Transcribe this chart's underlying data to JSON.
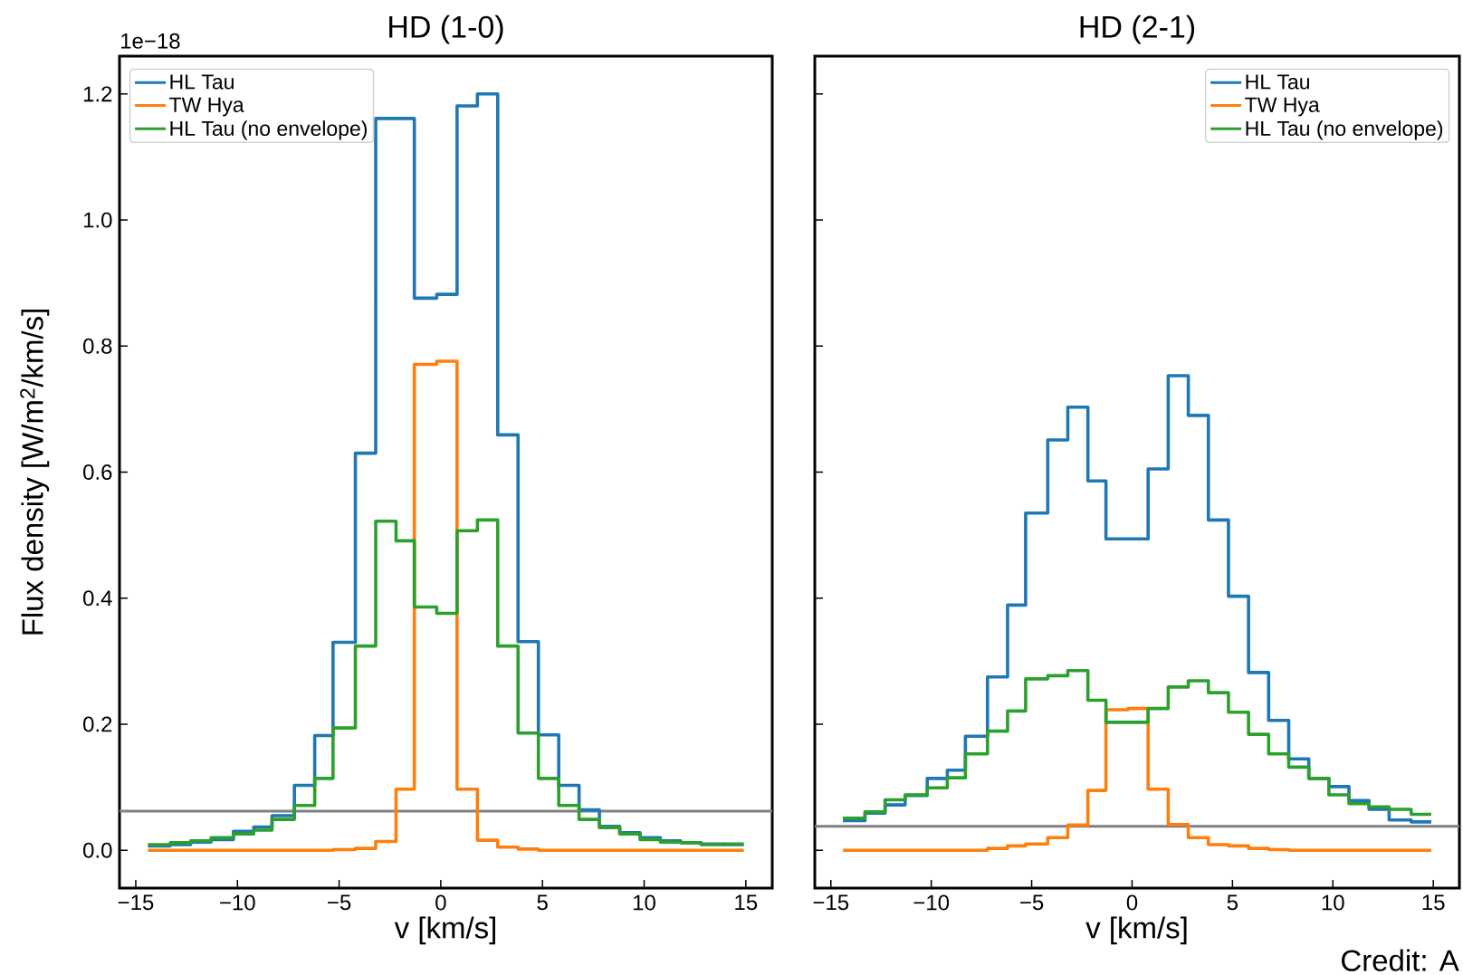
{
  "chart_data": [
    {
      "type": "histogram",
      "title": "HD (1-0)",
      "xlabel": "v [km/s]",
      "ylabel": "Flux density [W/m$^{2}$/km/s]",
      "bins": [
        -14.4,
        -13.3,
        -12.3,
        -11.3,
        -10.2,
        -9.2,
        -8.3,
        -7.2,
        -6.2,
        -5.3,
        -4.2,
        -3.2,
        -2.2,
        -1.3,
        -0.2,
        0.8,
        1.8,
        2.8,
        3.8,
        4.8,
        5.8,
        6.8,
        7.8,
        8.8,
        9.8,
        10.8,
        11.8,
        12.8,
        13.9,
        14.9
      ],
      "series": [
        {
          "name": "HL Tau",
          "color": "#1f77b4",
          "values": [
            0.007,
            0.009,
            0.013,
            0.017,
            0.03,
            0.037,
            0.055,
            0.103,
            0.182,
            0.33,
            0.63,
            1.161,
            1.161,
            0.876,
            0.882,
            1.181,
            1.2,
            0.659,
            0.331,
            0.183,
            0.103,
            0.064,
            0.038,
            0.028,
            0.02,
            0.015,
            0.012,
            0.01,
            0.009
          ]
        },
        {
          "name": "TW Hya",
          "color": "#ff7f0e",
          "values": [
            0,
            0,
            0,
            0,
            0,
            0,
            0,
            0,
            0,
            0.001,
            0.003,
            0.014,
            0.097,
            0.771,
            0.776,
            0.097,
            0.016,
            0.005,
            0.002,
            0,
            0,
            0,
            0,
            0,
            0,
            0,
            0,
            0,
            0
          ]
        },
        {
          "name": "HL Tau (no envelope)",
          "color": "#2ca02c",
          "values": [
            0.009,
            0.012,
            0.015,
            0.02,
            0.026,
            0.032,
            0.049,
            0.071,
            0.114,
            0.194,
            0.324,
            0.522,
            0.491,
            0.386,
            0.376,
            0.507,
            0.524,
            0.324,
            0.186,
            0.114,
            0.071,
            0.049,
            0.036,
            0.026,
            0.017,
            0.013,
            0.012,
            0.009,
            0.01
          ]
        }
      ],
      "xlim": [
        -15.8,
        16.3
      ],
      "ylim": [
        -0.06,
        1.26
      ],
      "xticks": [
        {
          "value": -15,
          "label": "−15"
        },
        {
          "value": -10,
          "label": "−10"
        },
        {
          "value": -5,
          "label": "−5"
        },
        0,
        5,
        10,
        15
      ],
      "yticks": [
        {
          "value": 0,
          "label": "0.0"
        },
        0.2,
        0.4,
        0.6,
        0.8,
        {
          "value": 1,
          "label": "1.0"
        },
        1.2
      ],
      "ref_lines": [
        {
          "axis": "y",
          "value": 0.062,
          "color": "#808080"
        }
      ],
      "legend": "top left",
      "grid": false,
      "annotations": [
        "1e−18"
      ]
    },
    {
      "type": "histogram",
      "title": "HD (2-1)",
      "xlabel": "v [km/s]",
      "bins": [
        -14.4,
        -13.3,
        -12.3,
        -11.3,
        -10.2,
        -9.2,
        -8.3,
        -7.2,
        -6.2,
        -5.3,
        -4.2,
        -3.2,
        -2.2,
        -1.3,
        -0.2,
        0.8,
        1.8,
        2.8,
        3.8,
        4.8,
        5.8,
        6.8,
        7.8,
        8.8,
        9.8,
        10.8,
        11.8,
        12.8,
        13.9,
        14.9
      ],
      "series": [
        {
          "name": "HL Tau",
          "color": "#1f77b4",
          "values": [
            0.047,
            0.059,
            0.072,
            0.087,
            0.114,
            0.127,
            0.181,
            0.275,
            0.389,
            0.535,
            0.651,
            0.703,
            0.586,
            0.494,
            0.494,
            0.605,
            0.753,
            0.69,
            0.524,
            0.403,
            0.282,
            0.206,
            0.145,
            0.114,
            0.101,
            0.079,
            0.065,
            0.048,
            0.045
          ]
        },
        {
          "name": "TW Hya",
          "color": "#ff7f0e",
          "values": [
            0,
            0,
            0,
            0,
            0,
            0,
            0,
            0.003,
            0.007,
            0.01,
            0.02,
            0.04,
            0.095,
            0.223,
            0.225,
            0.097,
            0.041,
            0.02,
            0.009,
            0.007,
            0.003,
            0.001,
            0,
            0,
            0,
            0,
            0,
            0,
            0
          ]
        },
        {
          "name": "HL Tau (no envelope)",
          "color": "#2ca02c",
          "values": [
            0.051,
            0.061,
            0.08,
            0.088,
            0.099,
            0.115,
            0.153,
            0.189,
            0.221,
            0.272,
            0.277,
            0.285,
            0.238,
            0.203,
            0.203,
            0.225,
            0.259,
            0.269,
            0.25,
            0.219,
            0.184,
            0.153,
            0.132,
            0.114,
            0.088,
            0.074,
            0.069,
            0.065,
            0.057
          ]
        }
      ],
      "xlim": [
        -15.8,
        16.3
      ],
      "ylim": [
        -0.06,
        1.26
      ],
      "xticks": [
        {
          "value": -15,
          "label": "−15"
        },
        {
          "value": -10,
          "label": "−10"
        },
        {
          "value": -5,
          "label": "−5"
        },
        0,
        5,
        10,
        15
      ],
      "yticks": [
        0,
        0.2,
        0.4,
        0.6,
        0.8,
        1,
        1.2
      ],
      "ref_lines": [
        {
          "axis": "y",
          "value": 0.038,
          "color": "#808080"
        }
      ],
      "legend": "top right",
      "grid": false,
      "tick_labels": "x",
      "annotations": [
        "Credit: A"
      ]
    }
  ]
}
